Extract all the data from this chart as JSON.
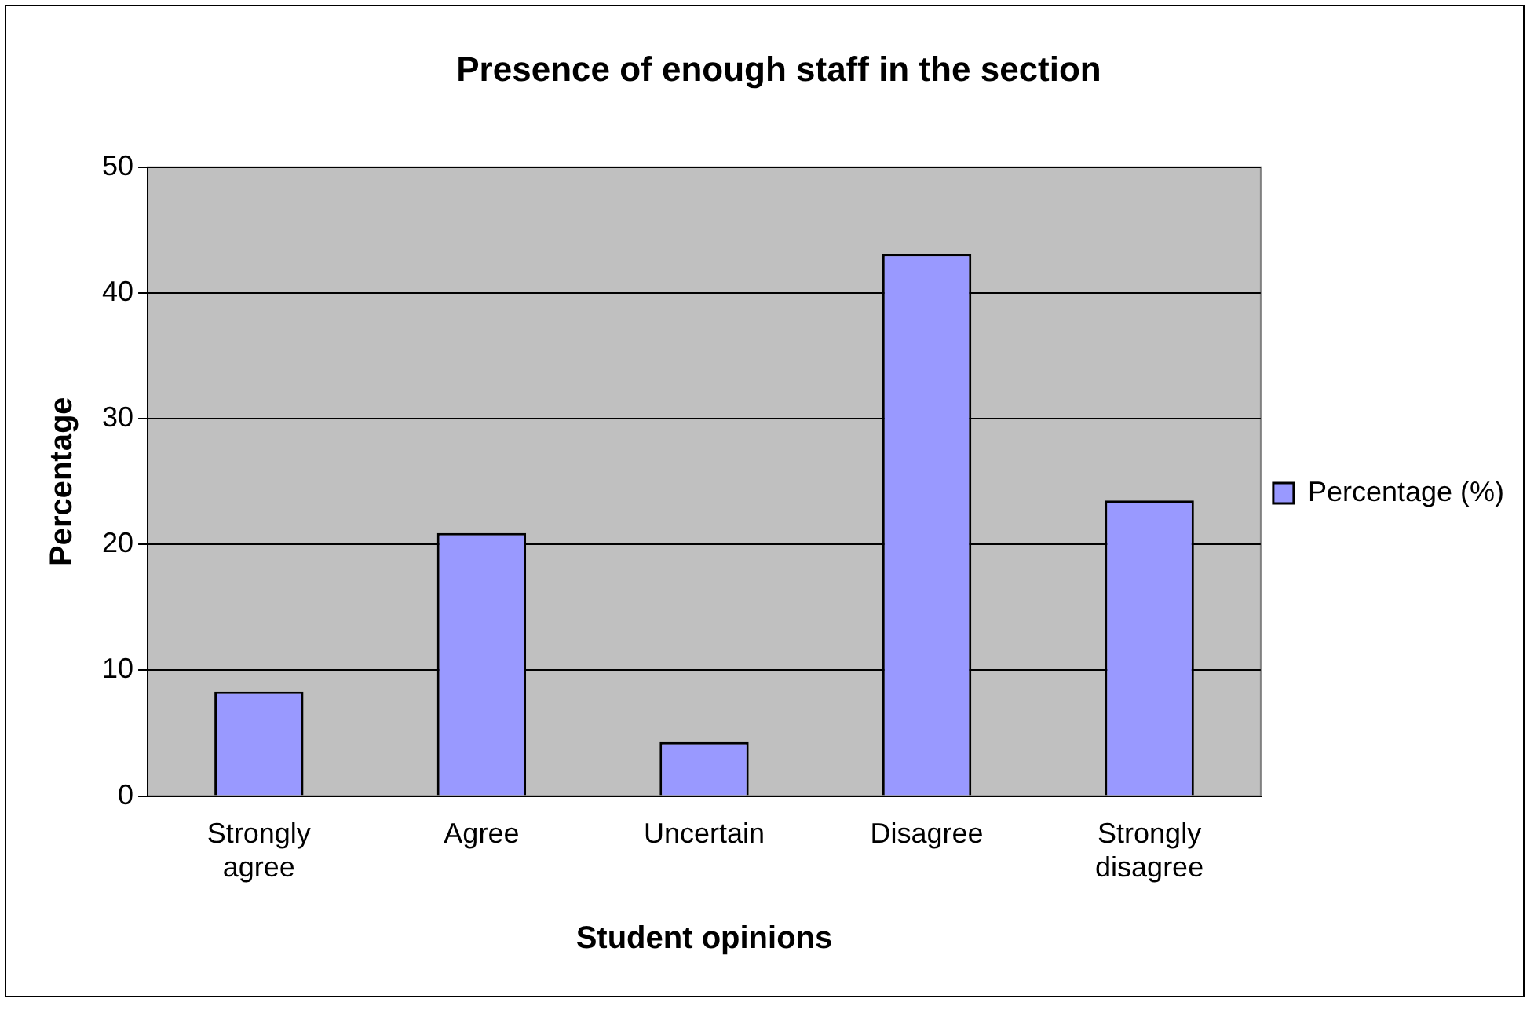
{
  "chart_data": {
    "type": "bar",
    "title": "Presence of enough staff in the section",
    "xlabel": "Student opinions",
    "ylabel": "Percentage",
    "categories": [
      [
        "Strongly",
        "agree"
      ],
      "Agree",
      "Uncertain",
      "Disagree",
      [
        "Strongly",
        "disagree"
      ]
    ],
    "series": [
      {
        "name": "Percentage (%)",
        "color": "#9999ff",
        "values": [
          8.3,
          20.9,
          4.3,
          43.1,
          23.5
        ]
      }
    ],
    "ylim": [
      0,
      50
    ],
    "yticks": [
      0,
      10,
      20,
      30,
      40,
      50
    ],
    "grid": "y",
    "legend": "right"
  }
}
